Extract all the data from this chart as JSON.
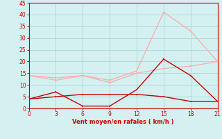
{
  "xlabel": "Vent moyen/en rafales ( km/h )",
  "x": [
    0,
    3,
    6,
    9,
    12,
    15,
    18,
    21
  ],
  "line1": [
    4,
    7,
    1,
    1,
    8,
    21,
    14,
    3
  ],
  "line2": [
    4,
    5,
    6,
    6,
    6,
    5,
    3,
    3
  ],
  "line3": [
    14,
    12,
    14,
    12,
    16,
    41,
    33,
    20
  ],
  "line4": [
    14,
    13,
    14,
    11,
    15,
    17,
    18,
    20
  ],
  "color_dark_red": "#cc0000",
  "color_light_red": "#ffaaaa",
  "bg_color": "#d4f0f0",
  "grid_color": "#aad8d8",
  "xlim": [
    0,
    21
  ],
  "ylim": [
    0,
    45
  ],
  "xticks": [
    0,
    3,
    6,
    9,
    12,
    15,
    18,
    21
  ],
  "yticks": [
    0,
    5,
    10,
    15,
    20,
    25,
    30,
    35,
    40,
    45
  ]
}
